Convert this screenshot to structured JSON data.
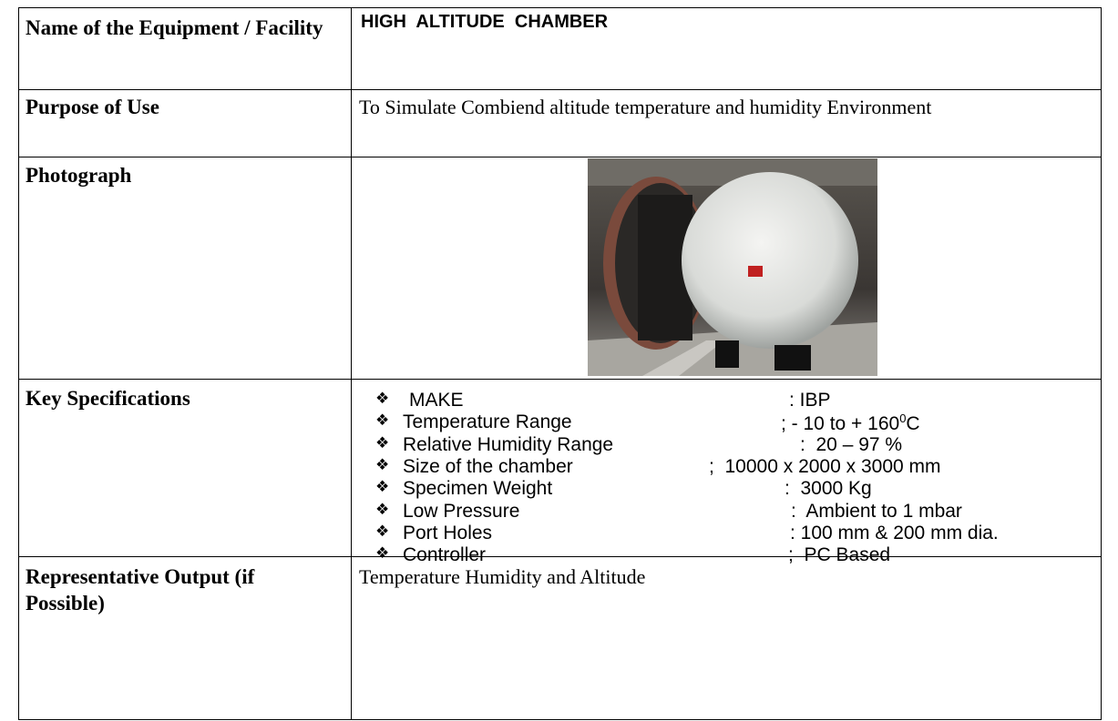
{
  "table": {
    "rows": [
      {
        "label": "Name of the Equipment / Facility",
        "value": "HIGH  ALTITUDE  CHAMBER"
      },
      {
        "label": "Purpose of Use",
        "value": "To Simulate Combiend altitude temperature and humidity Environment"
      },
      {
        "label": "Photograph"
      },
      {
        "label": "Key Specifications",
        "specs": [
          {
            "label": "MAKE",
            "value": ": IBP"
          },
          {
            "label": "Temperature Range",
            "value": "; - 10 to + 160",
            "value_sup": "0",
            "value_after": "C"
          },
          {
            "label": "Relative Humidity Range",
            "value": ":  20 – 97 %"
          },
          {
            "label": "Size of the chamber",
            "value": ";  10000 x 2000 x 3000 mm"
          },
          {
            "label": "Specimen Weight",
            "value": ":  3000 Kg"
          },
          {
            "label": "Low Pressure",
            "value": ":  Ambient to 1 mbar"
          },
          {
            "label": "Port Holes",
            "value": ": 100 mm & 200 mm dia."
          },
          {
            "label": "Controller",
            "value": ";  PC Based"
          }
        ]
      },
      {
        "label": "Representative Output (if Possible)",
        "value": "Temperature Humidity and Altitude"
      }
    ]
  }
}
